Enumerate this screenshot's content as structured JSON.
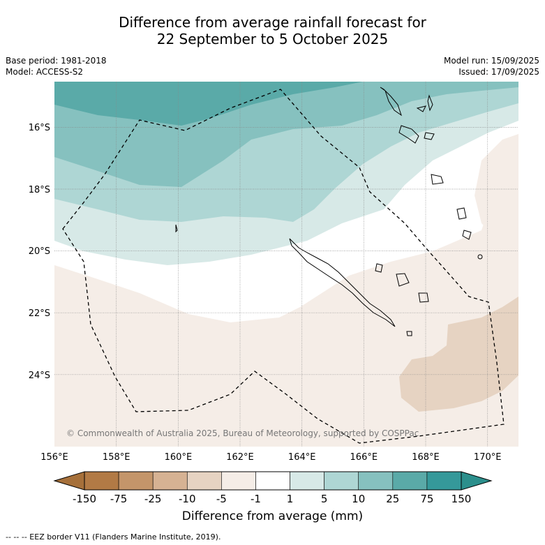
{
  "title": {
    "line1": "Difference from average rainfall forecast for",
    "line2": "22 September to 5 October 2025"
  },
  "meta": {
    "base_period": "Base period: 1981-2018",
    "model": "Model: ACCESS-S2",
    "model_run": "Model run: 15/09/2025",
    "issued": "Issued: 17/09/2025"
  },
  "map": {
    "lon_ticks": [
      "156°E",
      "158°E",
      "160°E",
      "162°E",
      "164°E",
      "166°E",
      "168°E",
      "170°E"
    ],
    "lat_ticks": [
      "16°S",
      "18°S",
      "20°S",
      "22°S",
      "24°S"
    ],
    "copyright": "© Commonwealth of Australia 2025, Bureau of Meteorology, supported by COSPPac",
    "eez_color": "#000000",
    "gridlines": true
  },
  "colorbar": {
    "title": "Difference from average (mm)",
    "tick_labels": [
      "-150",
      "-75",
      "-25",
      "-10",
      "-5",
      "-1",
      "1",
      "5",
      "10",
      "25",
      "75",
      "150"
    ],
    "colors": [
      "#a6703a",
      "#b27a45",
      "#c4956a",
      "#d6b293",
      "#e6d3c2",
      "#f5ede7",
      "#ffffff",
      "#d7e9e7",
      "#aed6d4",
      "#86c1bf",
      "#5aaaa8",
      "#35999a",
      "#2b8f8c"
    ]
  },
  "footer": {
    "legend": "--  --  -- EEZ border V11 (Flanders Marine Institute, 2019)."
  }
}
